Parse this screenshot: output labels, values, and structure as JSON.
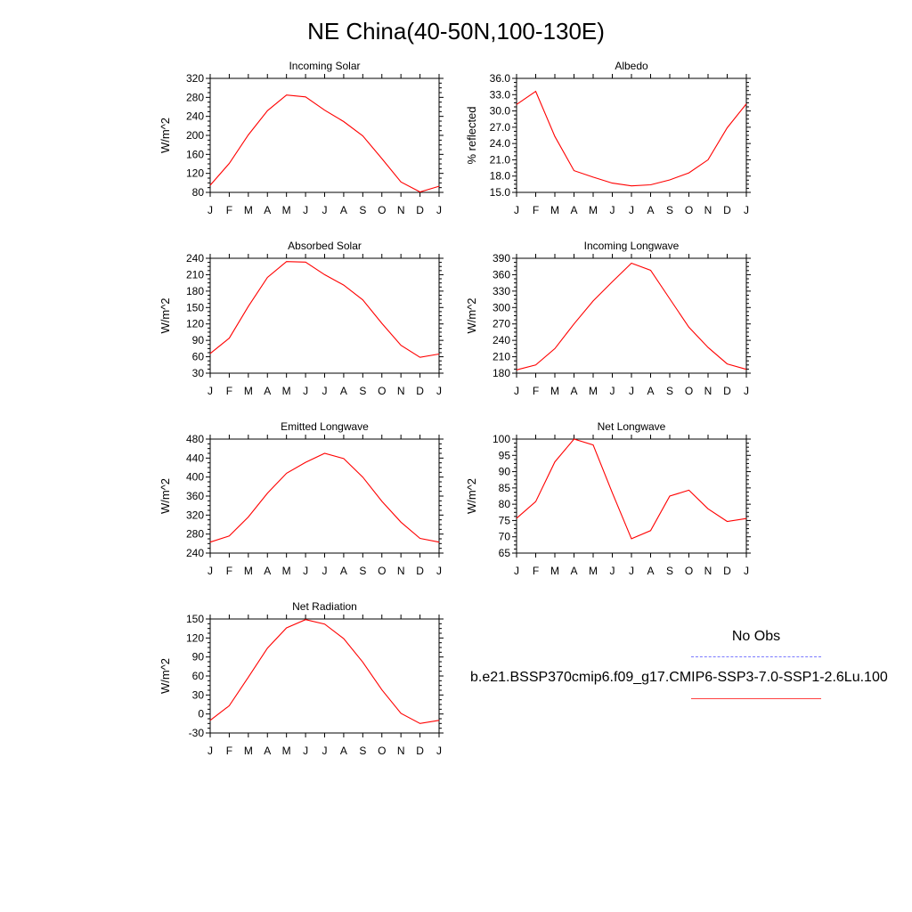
{
  "title": "NE China(40-50N,100-130E)",
  "legend": {
    "obs_label": "No Obs",
    "model_label": "b.e21.BSSP370cmip6.f09_g17.CMIP6-SSP3-7.0-SSP1-2.6Lu.100",
    "obs_color": "#7a7aff",
    "model_color": "#ff0000"
  },
  "chart_data": [
    {
      "type": "line",
      "title": "Incoming Solar",
      "ylabel": "W/m^2",
      "x": [
        "J",
        "F",
        "M",
        "A",
        "M",
        "J",
        "J",
        "A",
        "S",
        "O",
        "N",
        "D",
        "J"
      ],
      "ylim": [
        80,
        320
      ],
      "yticks": [
        "80",
        "120",
        "160",
        "200",
        "240",
        "280",
        "320"
      ],
      "series": [
        {
          "values": [
            95,
            141,
            201,
            252,
            285,
            281,
            253,
            229,
            199,
            151,
            102,
            81,
            93
          ]
        }
      ]
    },
    {
      "type": "line",
      "title": "Albedo",
      "ylabel": "% reflected",
      "x": [
        "J",
        "F",
        "M",
        "A",
        "M",
        "J",
        "J",
        "A",
        "S",
        "O",
        "N",
        "D",
        "J"
      ],
      "ylim": [
        15,
        36
      ],
      "yticks": [
        "15.0",
        "18.0",
        "21.0",
        "24.0",
        "27.0",
        "30.0",
        "33.0",
        "36.0"
      ],
      "series": [
        {
          "values": [
            31.2,
            33.6,
            25.3,
            19.0,
            17.8,
            16.7,
            16.2,
            16.4,
            17.3,
            18.6,
            21.0,
            26.9,
            31.3
          ]
        }
      ]
    },
    {
      "type": "line",
      "title": "Absorbed Solar",
      "ylabel": "W/m^2",
      "x": [
        "J",
        "F",
        "M",
        "A",
        "M",
        "J",
        "J",
        "A",
        "S",
        "O",
        "N",
        "D",
        "J"
      ],
      "ylim": [
        30,
        240
      ],
      "yticks": [
        "30",
        "60",
        "90",
        "120",
        "150",
        "180",
        "210",
        "240"
      ],
      "series": [
        {
          "values": [
            66,
            94,
            152,
            205,
            234,
            233,
            210,
            191,
            164,
            121,
            81,
            59,
            65
          ]
        }
      ]
    },
    {
      "type": "line",
      "title": "Incoming Longwave",
      "ylabel": "W/m^2",
      "x": [
        "J",
        "F",
        "M",
        "A",
        "M",
        "J",
        "J",
        "A",
        "S",
        "O",
        "N",
        "D",
        "J"
      ],
      "ylim": [
        180,
        390
      ],
      "yticks": [
        "180",
        "210",
        "240",
        "270",
        "300",
        "330",
        "360",
        "390"
      ],
      "series": [
        {
          "values": [
            186,
            195,
            225,
            270,
            312,
            347,
            381,
            368,
            316,
            264,
            227,
            197,
            187
          ]
        }
      ]
    },
    {
      "type": "line",
      "title": "Emitted Longwave",
      "ylabel": "W/m^2",
      "x": [
        "J",
        "F",
        "M",
        "A",
        "M",
        "J",
        "J",
        "A",
        "S",
        "O",
        "N",
        "D",
        "J"
      ],
      "ylim": [
        240,
        480
      ],
      "yticks": [
        "240",
        "280",
        "320",
        "360",
        "400",
        "440",
        "480"
      ],
      "series": [
        {
          "values": [
            263,
            276,
            316,
            366,
            408,
            431,
            450,
            439,
            400,
            349,
            305,
            271,
            263
          ]
        }
      ]
    },
    {
      "type": "line",
      "title": "Net Longwave",
      "ylabel": "W/m^2",
      "x": [
        "J",
        "F",
        "M",
        "A",
        "M",
        "J",
        "J",
        "A",
        "S",
        "O",
        "N",
        "D",
        "J"
      ],
      "ylim": [
        65,
        100
      ],
      "yticks": [
        "65",
        "70",
        "75",
        "80",
        "85",
        "90",
        "95",
        "100"
      ],
      "series": [
        {
          "values": [
            75.7,
            80.8,
            93.0,
            100.0,
            98.2,
            83.5,
            69.4,
            71.9,
            82.5,
            84.3,
            78.6,
            74.7,
            75.6
          ]
        }
      ]
    },
    {
      "type": "line",
      "title": "Net Radiation",
      "ylabel": "W/m^2",
      "x": [
        "J",
        "F",
        "M",
        "A",
        "M",
        "J",
        "J",
        "A",
        "S",
        "O",
        "N",
        "D",
        "J"
      ],
      "ylim": [
        -30,
        150
      ],
      "yticks": [
        "-30",
        "0",
        "30",
        "60",
        "90",
        "120",
        "150"
      ],
      "series": [
        {
          "values": [
            -10,
            13,
            58,
            104,
            136,
            149,
            142,
            119,
            82,
            38,
            1,
            -15,
            -10
          ]
        }
      ]
    }
  ]
}
